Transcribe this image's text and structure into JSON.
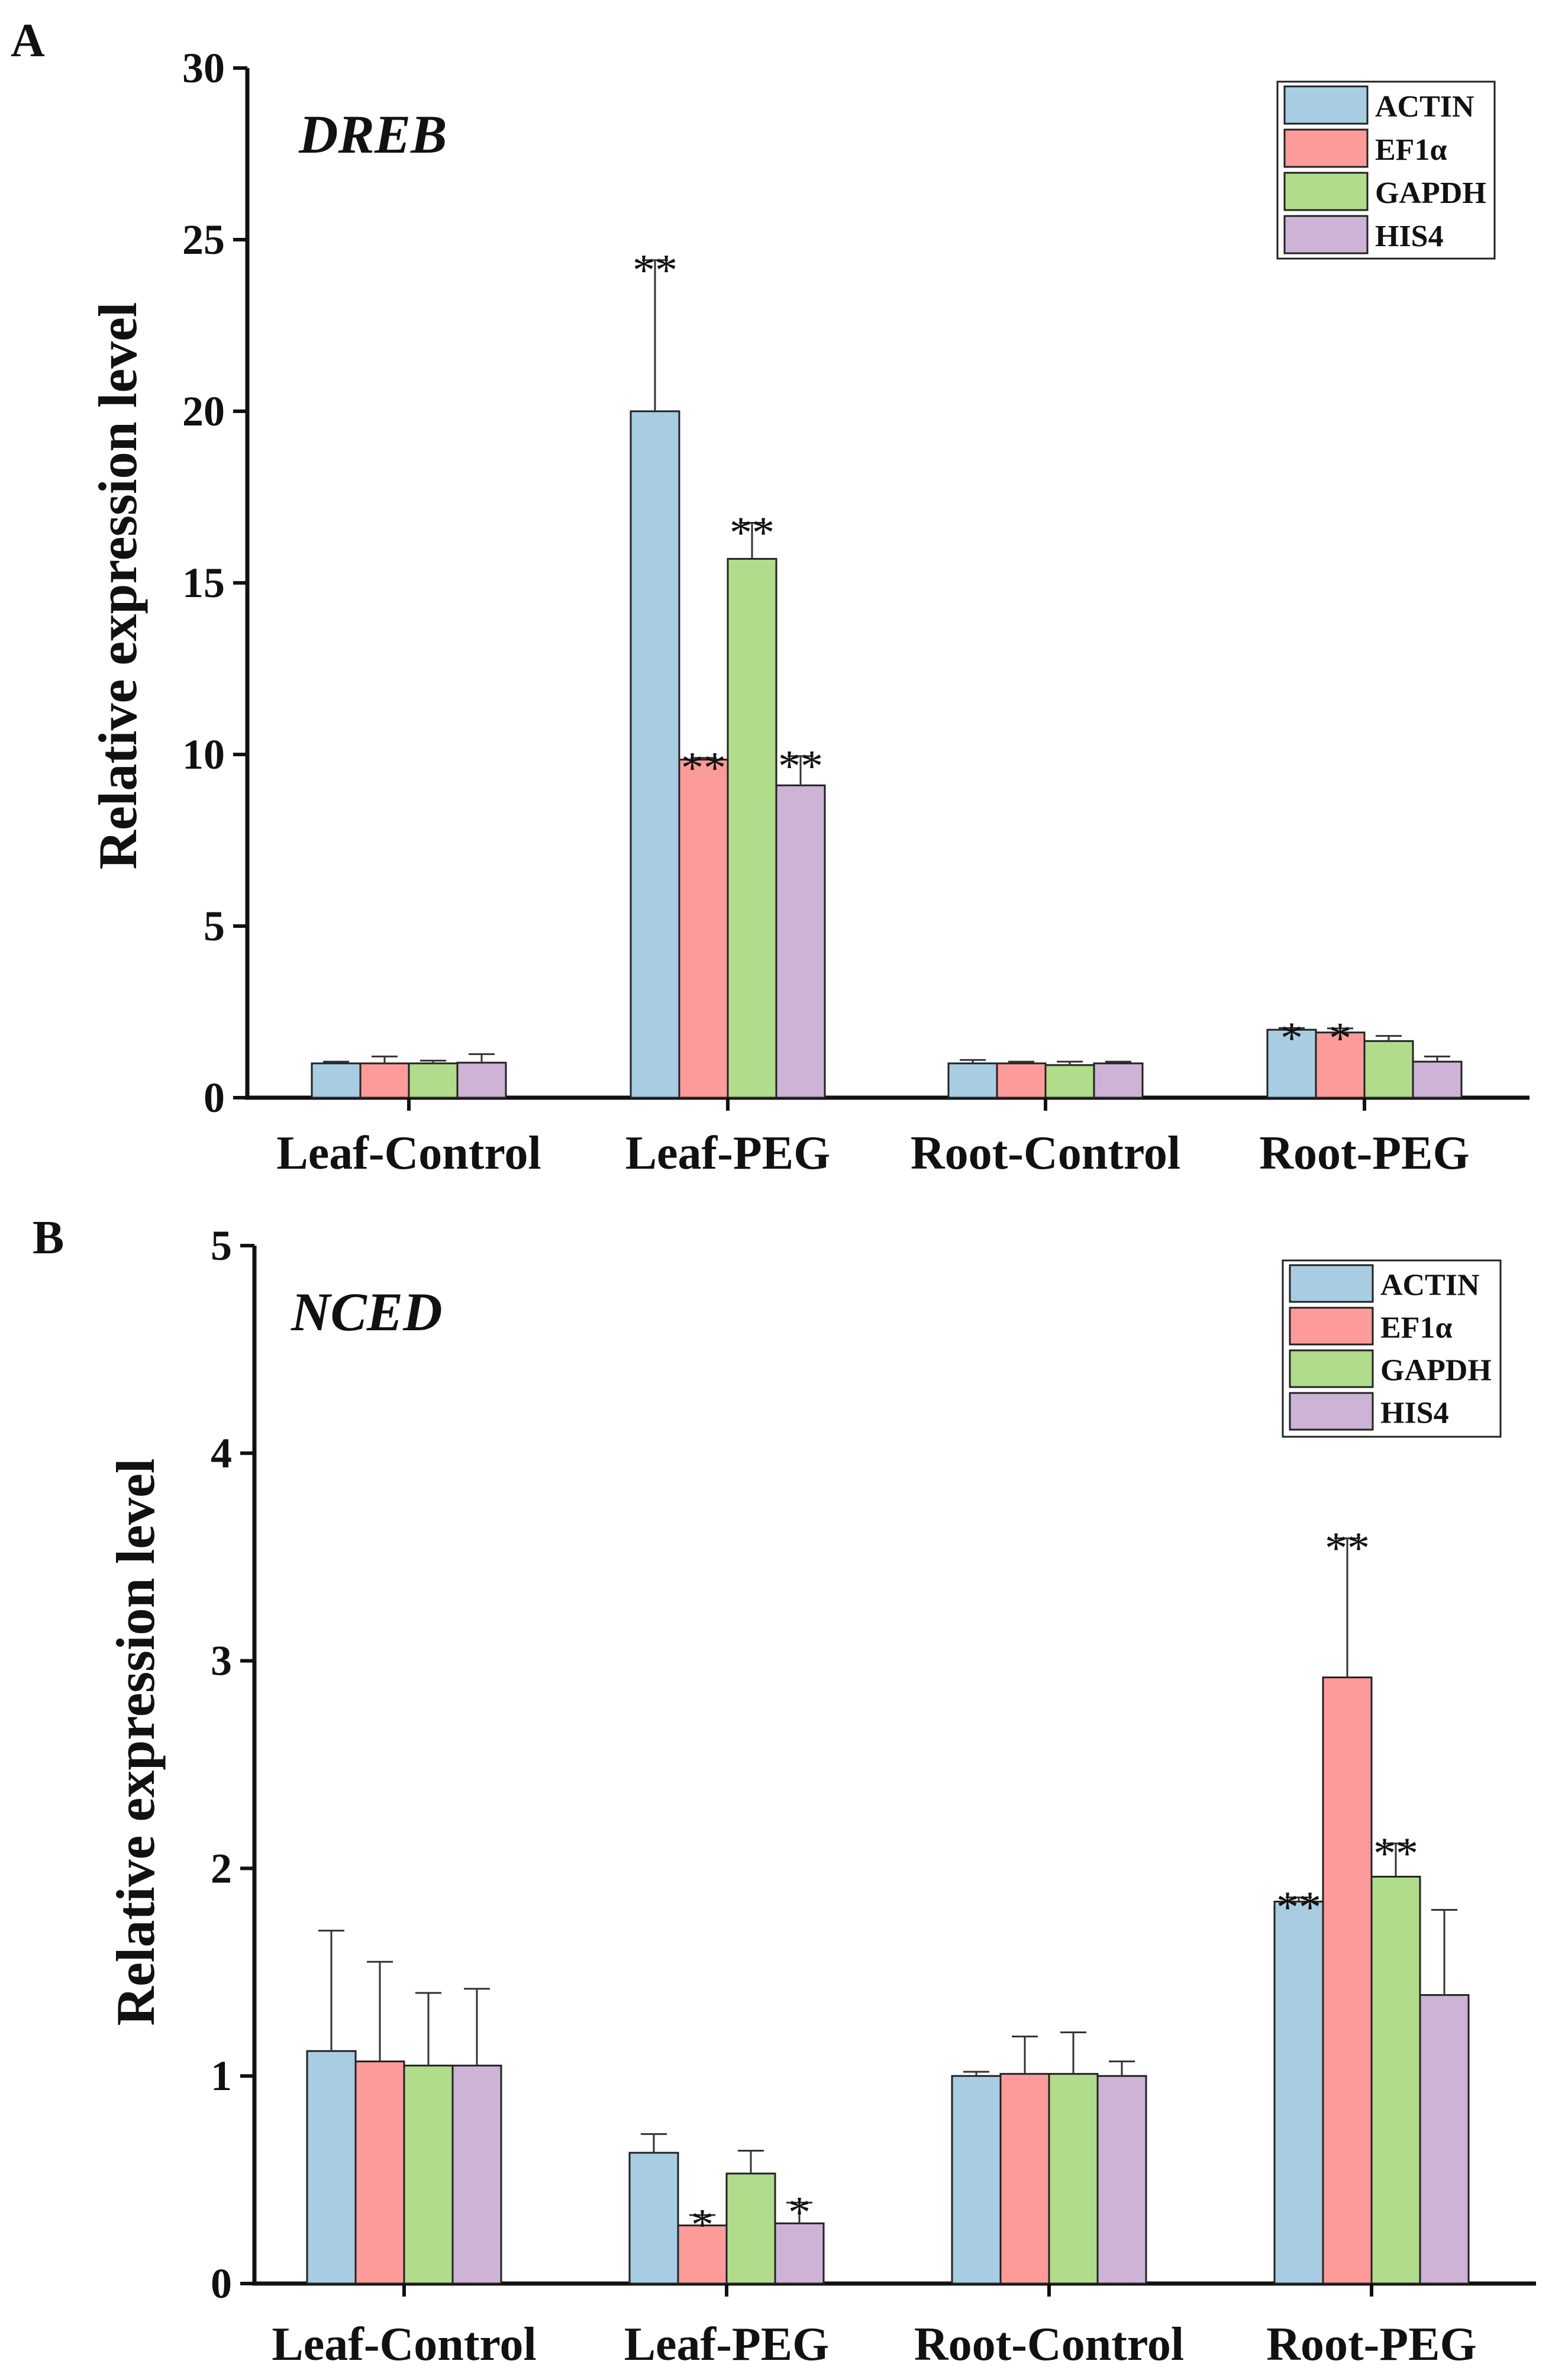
{
  "series_colors": {
    "ACTIN": "#a8cde3",
    "EF1α": "#fd9b9b",
    "GAPDH": "#b1dc8c",
    "HIS4": "#cdb3d6"
  },
  "chart_data": [
    {
      "panel": "A",
      "type": "bar",
      "title": "DREB",
      "xlabel": "",
      "ylabel": "Relative expression level",
      "ylim": [
        0,
        30
      ],
      "yticks": [
        0,
        5,
        10,
        15,
        20,
        25,
        30
      ],
      "categories": [
        "Leaf-Control",
        "Leaf-PEG",
        "Root-Control",
        "Root-PEG"
      ],
      "legend_position": "top-right",
      "series": [
        {
          "name": "ACTIN",
          "values": [
            1.0,
            20.0,
            1.0,
            1.98
          ],
          "errors": [
            0.05,
            4.4,
            0.1,
            0.05
          ],
          "significance": [
            "",
            "**",
            "",
            "*"
          ]
        },
        {
          "name": "EF1α",
          "values": [
            1.0,
            9.85,
            1.0,
            1.9
          ],
          "errors": [
            0.2,
            0.05,
            0.05,
            0.12
          ],
          "significance": [
            "",
            "**",
            "",
            "*"
          ]
        },
        {
          "name": "GAPDH",
          "values": [
            1.0,
            15.7,
            0.95,
            1.65
          ],
          "errors": [
            0.08,
            1.05,
            0.1,
            0.15
          ],
          "significance": [
            "",
            "**",
            "",
            ""
          ]
        },
        {
          "name": "HIS4",
          "values": [
            1.02,
            9.1,
            1.0,
            1.05
          ],
          "errors": [
            0.25,
            0.85,
            0.05,
            0.15
          ],
          "significance": [
            "",
            "**",
            "",
            ""
          ]
        }
      ]
    },
    {
      "panel": "B",
      "type": "bar",
      "title": "NCED",
      "xlabel": "",
      "ylabel": "Relative expression level",
      "ylim": [
        0,
        5
      ],
      "yticks": [
        0,
        1,
        2,
        3,
        4,
        5
      ],
      "categories": [
        "Leaf-Control",
        "Leaf-PEG",
        "Root-Control",
        "Root-PEG"
      ],
      "legend_position": "top-right",
      "series": [
        {
          "name": "ACTIN",
          "values": [
            1.12,
            0.63,
            1.0,
            1.84
          ],
          "errors": [
            0.58,
            0.09,
            0.02,
            0.02
          ],
          "significance": [
            "",
            "",
            "",
            "**"
          ]
        },
        {
          "name": "EF1α",
          "values": [
            1.07,
            0.28,
            1.01,
            2.92
          ],
          "errors": [
            0.48,
            0.05,
            0.18,
            0.67
          ],
          "significance": [
            "",
            "*",
            "",
            "**"
          ]
        },
        {
          "name": "GAPDH",
          "values": [
            1.05,
            0.53,
            1.01,
            1.96
          ],
          "errors": [
            0.35,
            0.11,
            0.2,
            0.16
          ],
          "significance": [
            "",
            "",
            "",
            "**"
          ]
        },
        {
          "name": "HIS4",
          "values": [
            1.05,
            0.29,
            1.0,
            1.39
          ],
          "errors": [
            0.37,
            0.1,
            0.07,
            0.41
          ],
          "significance": [
            "",
            "*",
            "",
            ""
          ]
        }
      ]
    }
  ]
}
